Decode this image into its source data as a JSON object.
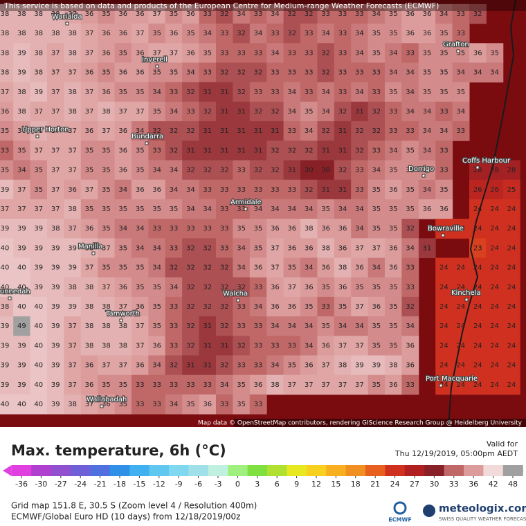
{
  "header": {
    "notice": "This service is based on data and products of the European Centre for Medium-range Weather Forecasts (ECMWF)",
    "attribution": "Map data © OpenStreetMap contributors, rendering GIScience Research Group @ Heidelberg University"
  },
  "towns": [
    "Warialda",
    "Inverell",
    "Grafton",
    "Upper Horton",
    "Bundarra",
    "Coffs Harbour",
    "Dorrigo",
    "Armidale",
    "Bowraville",
    "Manilla",
    "Gunnedah",
    "Walcha",
    "Kinchela",
    "Tamworth",
    "Port Macquarie",
    "Wallabadah"
  ],
  "grid": [
    [
      38,
      38,
      38,
      38,
      37,
      36,
      35,
      36,
      36,
      37,
      35,
      36,
      33,
      32,
      34,
      33,
      34,
      32,
      32,
      33,
      33,
      33,
      34,
      35,
      36,
      36,
      34,
      33,
      32,
      null,
      null
    ],
    [
      38,
      38,
      38,
      38,
      38,
      37,
      36,
      36,
      37,
      35,
      36,
      35,
      34,
      33,
      32,
      34,
      33,
      32,
      33,
      34,
      33,
      34,
      35,
      35,
      36,
      36,
      35,
      33,
      null,
      null,
      null
    ],
    [
      38,
      39,
      38,
      37,
      38,
      37,
      36,
      35,
      36,
      37,
      37,
      36,
      35,
      33,
      33,
      33,
      34,
      33,
      33,
      32,
      33,
      34,
      35,
      34,
      33,
      35,
      35,
      35,
      36,
      35,
      null
    ],
    [
      38,
      39,
      38,
      37,
      37,
      36,
      35,
      36,
      36,
      35,
      35,
      34,
      33,
      32,
      32,
      32,
      33,
      33,
      33,
      32,
      33,
      33,
      33,
      34,
      34,
      35,
      35,
      34,
      34,
      34,
      null
    ],
    [
      37,
      38,
      39,
      37,
      38,
      37,
      36,
      35,
      35,
      34,
      33,
      32,
      31,
      31,
      32,
      33,
      33,
      34,
      33,
      34,
      33,
      34,
      33,
      35,
      34,
      35,
      35,
      35,
      null,
      null,
      null
    ],
    [
      36,
      38,
      37,
      37,
      38,
      37,
      38,
      37,
      37,
      35,
      34,
      33,
      32,
      31,
      31,
      32,
      32,
      34,
      35,
      34,
      32,
      31,
      32,
      33,
      34,
      34,
      33,
      34,
      null,
      null,
      null
    ],
    [
      35,
      36,
      38,
      37,
      37,
      36,
      37,
      36,
      34,
      32,
      32,
      32,
      31,
      31,
      31,
      31,
      31,
      33,
      34,
      32,
      31,
      32,
      32,
      33,
      33,
      34,
      34,
      33,
      null,
      null,
      null
    ],
    [
      33,
      35,
      37,
      37,
      37,
      35,
      35,
      36,
      35,
      33,
      32,
      31,
      31,
      31,
      31,
      31,
      32,
      32,
      32,
      31,
      31,
      32,
      33,
      34,
      35,
      34,
      33,
      null,
      null,
      null,
      null
    ],
    [
      35,
      34,
      35,
      37,
      37,
      35,
      35,
      36,
      35,
      34,
      34,
      32,
      32,
      32,
      33,
      32,
      32,
      31,
      30,
      30,
      32,
      33,
      34,
      35,
      35,
      35,
      33,
      null,
      28,
      28,
      28
    ],
    [
      39,
      37,
      35,
      37,
      36,
      37,
      35,
      34,
      36,
      36,
      34,
      34,
      33,
      33,
      33,
      33,
      33,
      33,
      32,
      31,
      31,
      33,
      35,
      36,
      35,
      34,
      35,
      null,
      26,
      26,
      25
    ],
    [
      37,
      37,
      37,
      37,
      38,
      35,
      35,
      35,
      35,
      35,
      35,
      34,
      34,
      33,
      33,
      34,
      34,
      34,
      34,
      35,
      34,
      34,
      35,
      35,
      35,
      36,
      36,
      null,
      24,
      24,
      24
    ],
    [
      39,
      39,
      39,
      38,
      37,
      36,
      35,
      34,
      34,
      33,
      33,
      33,
      33,
      33,
      35,
      35,
      36,
      36,
      38,
      36,
      36,
      34,
      35,
      35,
      32,
      null,
      24,
      24,
      24,
      24,
      24
    ],
    [
      40,
      39,
      39,
      39,
      39,
      38,
      37,
      35,
      34,
      34,
      33,
      32,
      32,
      33,
      34,
      35,
      37,
      36,
      36,
      38,
      36,
      37,
      37,
      36,
      34,
      31,
      null,
      null,
      23,
      24,
      24
    ],
    [
      40,
      40,
      39,
      39,
      39,
      37,
      35,
      35,
      35,
      34,
      32,
      32,
      32,
      32,
      34,
      36,
      37,
      35,
      34,
      36,
      38,
      36,
      34,
      36,
      33,
      null,
      24,
      24,
      24,
      24,
      24
    ],
    [
      40,
      40,
      39,
      39,
      38,
      38,
      37,
      36,
      35,
      35,
      34,
      32,
      32,
      32,
      32,
      33,
      36,
      37,
      36,
      35,
      36,
      35,
      35,
      35,
      33,
      null,
      24,
      24,
      24,
      24,
      24
    ],
    [
      38,
      40,
      40,
      39,
      39,
      38,
      38,
      37,
      36,
      35,
      33,
      32,
      32,
      32,
      33,
      34,
      36,
      36,
      35,
      33,
      35,
      37,
      36,
      35,
      32,
      null,
      24,
      24,
      24,
      24,
      24
    ],
    [
      39,
      49,
      40,
      39,
      37,
      38,
      38,
      38,
      37,
      35,
      33,
      32,
      31,
      32,
      33,
      33,
      34,
      34,
      34,
      35,
      34,
      34,
      35,
      35,
      34,
      null,
      24,
      24,
      24,
      24,
      24
    ],
    [
      39,
      39,
      40,
      39,
      37,
      38,
      38,
      38,
      37,
      36,
      33,
      32,
      31,
      31,
      32,
      33,
      33,
      33,
      34,
      36,
      37,
      37,
      35,
      35,
      36,
      null,
      24,
      24,
      24,
      24,
      24
    ],
    [
      39,
      39,
      40,
      39,
      37,
      36,
      37,
      37,
      36,
      34,
      32,
      31,
      31,
      32,
      33,
      33,
      34,
      35,
      36,
      37,
      38,
      39,
      39,
      38,
      36,
      null,
      24,
      24,
      24,
      24,
      24
    ],
    [
      39,
      39,
      40,
      39,
      37,
      36,
      35,
      35,
      33,
      33,
      33,
      33,
      33,
      34,
      35,
      36,
      38,
      37,
      37,
      37,
      37,
      37,
      35,
      36,
      33,
      null,
      24,
      24,
      24,
      24,
      24
    ],
    [
      40,
      40,
      40,
      39,
      38,
      37,
      36,
      35,
      33,
      33,
      34,
      35,
      36,
      33,
      35,
      33,
      null,
      null,
      null,
      null,
      null,
      null,
      null,
      null,
      null,
      null,
      null,
      null,
      null,
      null,
      null
    ]
  ],
  "footer": {
    "title": "Max. temperature, 6h (°C)",
    "valid_label": "Valid for",
    "valid_time": "Thu 12/19/2019, 05:00pm AEDT",
    "grid_info": "Grid map 151.8 E, 30.5 S (Zoom level 4 / Resolution 400m)",
    "model_info": "ECMWF/Global Euro HD (10 days)  from  12/18/2019/00z",
    "brand": "meteologix.com",
    "tagline": "SWISS QUALITY WEATHER FORECASTS",
    "ecmwf": "ECMWF"
  },
  "colorbar": {
    "ticks": [
      -36,
      -30,
      -27,
      -24,
      -21,
      -18,
      -15,
      -12,
      -9,
      -6,
      -3,
      0,
      3,
      6,
      9,
      12,
      15,
      18,
      21,
      24,
      27,
      30,
      33,
      36,
      42,
      48
    ],
    "colors": [
      "#e040e0",
      "#b040d0",
      "#9050d0",
      "#7060d8",
      "#5070e0",
      "#3090e8",
      "#40b0f0",
      "#60c8f0",
      "#80d8f0",
      "#a0e0e8",
      "#c0f0e0",
      "#a0f080",
      "#80e040",
      "#b0e030",
      "#e8e820",
      "#f8d020",
      "#f8b020",
      "#f09020",
      "#e86020",
      "#d03020",
      "#b02020",
      "#882028",
      "#c06868",
      "#dc9c9c",
      "#f2dada",
      "#a0a0a0"
    ]
  }
}
